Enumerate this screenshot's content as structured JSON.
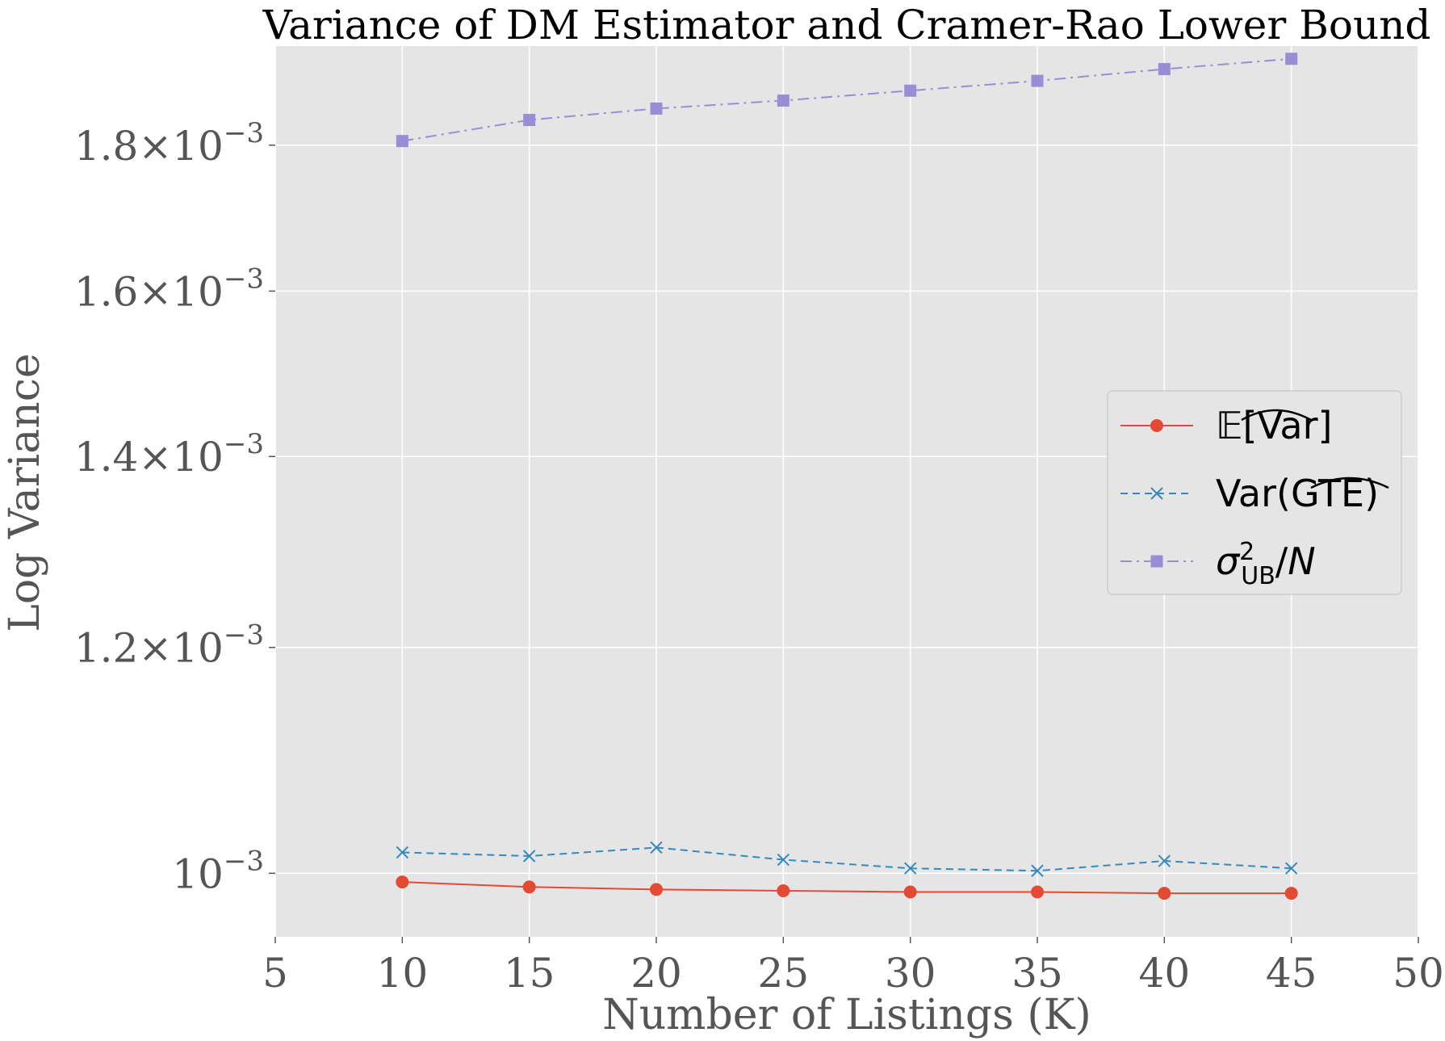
{
  "chart_data": {
    "type": "line",
    "title": "Variance of DM Estimator and Cramer-Rao Lower Bound",
    "xlabel": "Number of Listings (K)",
    "ylabel": "Log Variance",
    "xlim": [
      5,
      50
    ],
    "ylim": [
      0.00095,
      0.00195
    ],
    "yscale": "log",
    "grid": true,
    "legend_position": "center-right",
    "x_ticks": [
      5,
      10,
      15,
      20,
      25,
      30,
      35,
      40,
      45,
      50
    ],
    "y_ticks": [
      {
        "value": 0.001,
        "mantissa": "",
        "exponent": "−3"
      },
      {
        "value": 0.0012,
        "mantissa": "1.2",
        "exponent": "−3"
      },
      {
        "value": 0.0014,
        "mantissa": "1.4",
        "exponent": "−3"
      },
      {
        "value": 0.0016,
        "mantissa": "1.6",
        "exponent": "−3"
      },
      {
        "value": 0.0018,
        "mantissa": "1.8",
        "exponent": "−3"
      }
    ],
    "x": [
      10,
      15,
      20,
      25,
      30,
      35,
      40,
      45
    ],
    "series": [
      {
        "name": "𝔼[Var]",
        "color": "#E24A33",
        "marker": "circle",
        "linestyle": "solid",
        "values": [
          0.000993,
          0.000989,
          0.000987,
          0.000986,
          0.000985,
          0.000985,
          0.000984,
          0.000984
        ]
      },
      {
        "name": "Var(GTE)",
        "color": "#348ABD",
        "marker": "x",
        "linestyle": "dashed",
        "values": [
          0.001017,
          0.001014,
          0.001021,
          0.001011,
          0.001004,
          0.001002,
          0.00101,
          0.001004
        ]
      },
      {
        "name": "σ²UB/N",
        "color": "#988ED5",
        "marker": "square",
        "linestyle": "dashdot",
        "values": [
          0.001806,
          0.001837,
          0.001854,
          0.001866,
          0.001881,
          0.001896,
          0.001914,
          0.00193
        ]
      }
    ],
    "colors": {
      "plot_background": "#E5E5E5",
      "grid": "#FFFFFF",
      "tick_text": "#555555"
    }
  }
}
